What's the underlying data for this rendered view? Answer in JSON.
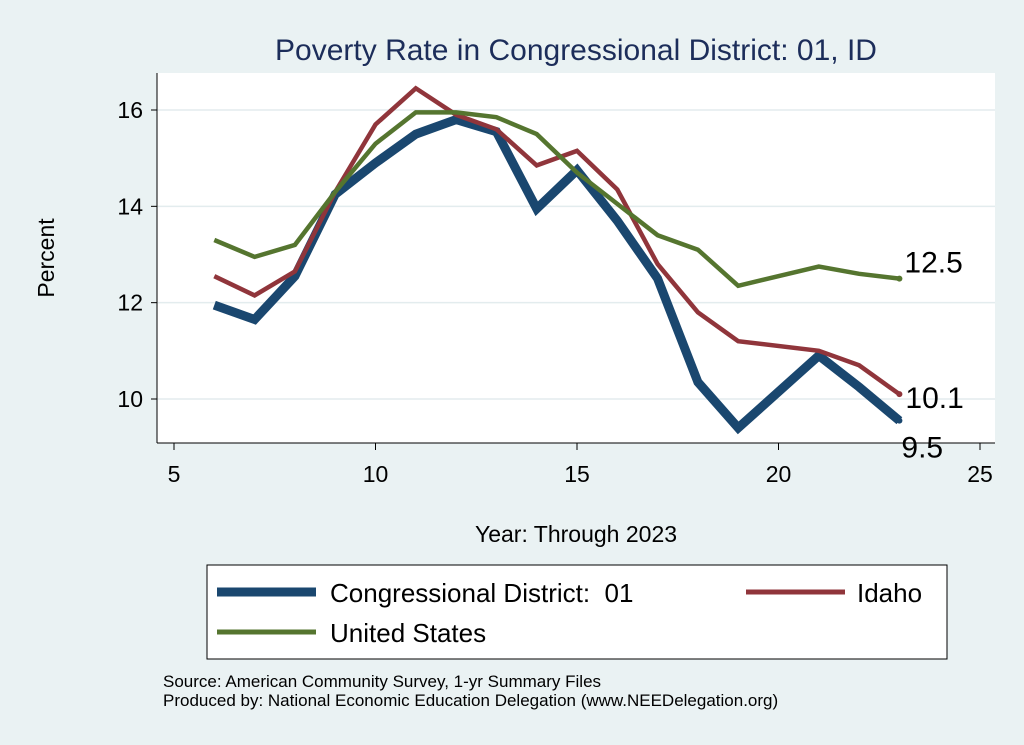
{
  "chart_data": {
    "type": "line",
    "title": "Poverty Rate in Congressional District:  01, ID",
    "xlabel": "Year: Through 2023",
    "ylabel": "Percent",
    "xlim": [
      5,
      25
    ],
    "ylim": [
      9,
      16.8
    ],
    "x_ticks": [
      "5",
      "10",
      "15",
      "20",
      "25"
    ],
    "y_ticks": [
      "10",
      "12",
      "14",
      "16"
    ],
    "grid": true,
    "legend_position": "bottom",
    "series": [
      {
        "name": "Congressional District:  01",
        "color": "#1a476f",
        "x": [
          6,
          7,
          8,
          9,
          10,
          11,
          12,
          13,
          14,
          15,
          16,
          17,
          18,
          19,
          21,
          22,
          23
        ],
        "values": [
          11.95,
          11.65,
          12.55,
          14.25,
          14.9,
          15.5,
          15.8,
          15.55,
          13.95,
          14.75,
          13.7,
          12.5,
          10.35,
          9.4,
          10.9,
          10.25,
          9.55
        ],
        "end_label": "9.5"
      },
      {
        "name": "Idaho",
        "color": "#90353b",
        "x": [
          6,
          7,
          8,
          9,
          10,
          11,
          12,
          13,
          14,
          15,
          16,
          17,
          18,
          19,
          21,
          22,
          23
        ],
        "values": [
          12.55,
          12.15,
          12.65,
          14.3,
          15.7,
          16.45,
          15.9,
          15.6,
          14.85,
          15.15,
          14.35,
          12.8,
          11.8,
          11.2,
          11.0,
          10.7,
          10.1
        ],
        "end_label": "10.1"
      },
      {
        "name": "United States",
        "color": "#55752f",
        "x": [
          6,
          7,
          8,
          9,
          10,
          11,
          12,
          13,
          14,
          15,
          16,
          17,
          18,
          19,
          21,
          22,
          23
        ],
        "values": [
          13.3,
          12.95,
          13.2,
          14.3,
          15.3,
          15.95,
          15.95,
          15.85,
          15.5,
          14.7,
          14.05,
          13.4,
          13.1,
          12.35,
          12.75,
          12.6,
          12.5
        ],
        "end_label": "12.5"
      }
    ]
  },
  "source": {
    "line1": "Source: American Community Survey, 1-yr Summary Files",
    "line2": "Produced by: National Economic Education Delegation (www.NEEDelegation.org)"
  }
}
